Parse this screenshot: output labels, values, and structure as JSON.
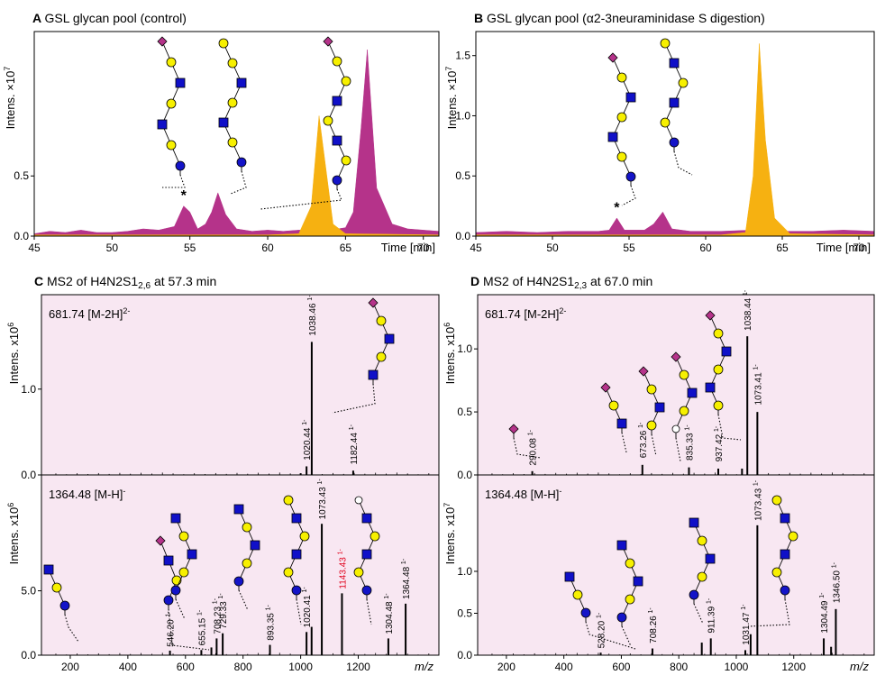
{
  "colors": {
    "sialylated": "#b5338a",
    "digested": "#f6b111",
    "msBackground": "#f8e7f2",
    "hexnac": "#1010c8",
    "galactose": "#f7f000",
    "glucose": "#1414c8",
    "sialic": "#b5338a"
  },
  "chart_data": [
    {
      "id": "A",
      "type": "area",
      "letter": "A",
      "title": "GSL glycan pool (control)",
      "xlabel": "Time [min]",
      "ylabel": "Intens. ×10",
      "ylabel_exp": "7",
      "xlim": [
        45,
        71
      ],
      "ylim": [
        0,
        1.7
      ],
      "xticks": [
        "45",
        "50",
        "55",
        "60",
        "65",
        "70"
      ],
      "yticks": [
        "0.0",
        "0.5"
      ],
      "series": [
        {
          "color": "#b5338a",
          "x": [
            45,
            46,
            47,
            48,
            49,
            50,
            51,
            52,
            53,
            54,
            54.6,
            55,
            55.5,
            56,
            56.4,
            56.8,
            57.3,
            58,
            59,
            60,
            61,
            62,
            63,
            63.5,
            64,
            65,
            65.5,
            66,
            66.4,
            67,
            68,
            69,
            70,
            71
          ],
          "y": [
            0.02,
            0.04,
            0.03,
            0.05,
            0.03,
            0.03,
            0.04,
            0.06,
            0.05,
            0.08,
            0.25,
            0.2,
            0.06,
            0.1,
            0.2,
            0.36,
            0.18,
            0.06,
            0.04,
            0.05,
            0.04,
            0.05,
            0.04,
            0.03,
            0.05,
            0.07,
            0.2,
            0.9,
            1.55,
            0.4,
            0.1,
            0.06,
            0.05,
            0.04
          ]
        },
        {
          "color": "#f6b111",
          "x": [
            45,
            60,
            62,
            62.8,
            63.3,
            63.7,
            64.2,
            65,
            71
          ],
          "y": [
            0.01,
            0.01,
            0.02,
            0.25,
            1.0,
            0.6,
            0.1,
            0.02,
            0.01
          ]
        }
      ],
      "annotations": [
        {
          "text": "*",
          "x": 54.6,
          "y": 0.3
        }
      ]
    },
    {
      "id": "B",
      "type": "area",
      "letter": "B",
      "title": "GSL glycan pool (α2-3neuraminidase S digestion)",
      "xlabel": "Time [min]",
      "ylabel": "Intens. ×10",
      "ylabel_exp": "7",
      "xlim": [
        45,
        71
      ],
      "ylim": [
        0,
        1.7
      ],
      "xticks": [
        "45",
        "50",
        "55",
        "60",
        "65",
        "70"
      ],
      "yticks": [
        "0.0",
        "0.5",
        "1.0",
        "1.5"
      ],
      "series": [
        {
          "color": "#b5338a",
          "x": [
            45,
            47,
            49,
            51,
            53,
            53.7,
            54.2,
            54.7,
            56,
            56.6,
            57.2,
            57.8,
            59,
            61,
            63,
            65,
            67,
            69,
            71
          ],
          "y": [
            0.03,
            0.04,
            0.03,
            0.04,
            0.04,
            0.05,
            0.15,
            0.05,
            0.05,
            0.1,
            0.2,
            0.06,
            0.04,
            0.04,
            0.05,
            0.04,
            0.04,
            0.05,
            0.04
          ]
        },
        {
          "color": "#f6b111",
          "x": [
            45,
            61,
            62.6,
            63.1,
            63.5,
            63.9,
            64.5,
            65.5,
            71
          ],
          "y": [
            0.01,
            0.01,
            0.03,
            0.5,
            1.6,
            0.8,
            0.15,
            0.02,
            0.01
          ]
        }
      ],
      "annotations": [
        {
          "text": "*",
          "x": 54.2,
          "y": 0.2
        }
      ]
    },
    {
      "id": "C",
      "type": "bar",
      "letter": "C",
      "title": "MS2 of H4N2S1",
      "title_sub": "2,6",
      "title_tail": " at 57.3 min",
      "xlabel": "m/z",
      "xlim": [
        100,
        1480
      ],
      "xticks": [
        "200",
        "400",
        "600",
        "800",
        "1000",
        "1200"
      ],
      "panels": [
        {
          "precursor": "681.74 [M-2H]",
          "precursor_sup": "2-",
          "ylabel": "Intens. x10",
          "ylabel_exp": "6",
          "ylim": [
            0,
            2.1
          ],
          "yticks": [
            "0.0",
            "1.0"
          ],
          "peaks": [
            {
              "mz": 1020.44,
              "h": 0.1
            },
            {
              "mz": 1038.46,
              "h": 1.55
            },
            {
              "mz": 1182.44,
              "h": 0.05
            },
            {
              "mz": 1000,
              "h": 0.02
            }
          ],
          "labels": [
            {
              "mz": 1020.44,
              "text": "1020.44",
              "charge": "1-",
              "y": 0.15
            },
            {
              "mz": 1038.46,
              "text": "1038.46",
              "charge": "1-",
              "y": 1.6
            },
            {
              "mz": 1182.44,
              "text": "1182.44",
              "charge": "1-",
              "y": 0.1
            }
          ]
        },
        {
          "precursor": "1364.48 [M-H]",
          "precursor_sup": "-",
          "ylabel": "Intens. x10",
          "ylabel_exp": "6",
          "ylim": [
            0,
            14
          ],
          "yticks": [
            "0.0",
            "5.0"
          ],
          "peaks": [
            {
              "mz": 546.2,
              "h": 0.35
            },
            {
              "mz": 655.15,
              "h": 0.4
            },
            {
              "mz": 690,
              "h": 0.6
            },
            {
              "mz": 708.23,
              "h": 1.3
            },
            {
              "mz": 729.33,
              "h": 1.7
            },
            {
              "mz": 893.35,
              "h": 0.8
            },
            {
              "mz": 1020.41,
              "h": 1.8
            },
            {
              "mz": 1038,
              "h": 2.2
            },
            {
              "mz": 1073.43,
              "h": 10.2
            },
            {
              "mz": 1143.43,
              "h": 4.8
            },
            {
              "mz": 1304.48,
              "h": 1.3
            },
            {
              "mz": 1364.48,
              "h": 4.0
            }
          ],
          "labels": [
            {
              "mz": 546.2,
              "text": "546.20",
              "charge": "1-",
              "y": 0.5
            },
            {
              "mz": 655.15,
              "text": "655.15",
              "charge": "1-",
              "y": 0.6
            },
            {
              "mz": 708.23,
              "text": "708.23",
              "charge": "1-",
              "y": 1.5
            },
            {
              "mz": 729.33,
              "text": "729.33",
              "charge": "1-",
              "y": 1.9
            },
            {
              "mz": 893.35,
              "text": "893.35",
              "charge": "1-",
              "y": 1.0
            },
            {
              "mz": 1020.41,
              "text": "1020.41",
              "charge": "1-",
              "y": 2.0
            },
            {
              "mz": 1073.43,
              "text": "1073.43",
              "charge": "1-",
              "y": 10.4
            },
            {
              "mz": 1143.43,
              "text": "1143.43",
              "charge": "1-",
              "y": 5.0,
              "red": true
            },
            {
              "mz": 1304.48,
              "text": "1304.48",
              "charge": "1-",
              "y": 1.5
            },
            {
              "mz": 1364.48,
              "text": "1364.48",
              "charge": "1-",
              "y": 4.2
            }
          ]
        }
      ]
    },
    {
      "id": "D",
      "type": "bar",
      "letter": "D",
      "title": "MS2 of H4N2S1",
      "title_sub": "2,3",
      "title_tail": " at 67.0 min",
      "xlabel": "m/z",
      "xlim": [
        100,
        1480
      ],
      "xticks": [
        "200",
        "400",
        "600",
        "800",
        "1000",
        "1200"
      ],
      "panels": [
        {
          "precursor": "681.74 [M-2H]",
          "precursor_sup": "2-",
          "ylabel": "Intens. x10",
          "ylabel_exp": "6",
          "ylim": [
            0,
            1.43
          ],
          "yticks": [
            "0.0",
            "0.5",
            "1.0"
          ],
          "peaks": [
            {
              "mz": 290.08,
              "h": 0.03
            },
            {
              "mz": 673.26,
              "h": 0.08
            },
            {
              "mz": 835.33,
              "h": 0.06
            },
            {
              "mz": 937.42,
              "h": 0.05
            },
            {
              "mz": 1038.44,
              "h": 1.1
            },
            {
              "mz": 1073.41,
              "h": 0.5
            },
            {
              "mz": 1020,
              "h": 0.05
            }
          ],
          "labels": [
            {
              "mz": 290.08,
              "text": "290.08",
              "charge": "1-",
              "y": 0.06
            },
            {
              "mz": 673.26,
              "text": "673.26",
              "charge": "1-",
              "y": 0.12
            },
            {
              "mz": 835.33,
              "text": "835.33",
              "charge": "1-",
              "y": 0.1
            },
            {
              "mz": 937.42,
              "text": "937.42",
              "charge": "1-",
              "y": 0.09
            },
            {
              "mz": 1038.44,
              "text": "1038.44",
              "charge": "1-",
              "y": 1.13
            },
            {
              "mz": 1073.41,
              "text": "1073.41",
              "charge": "1-",
              "y": 0.54
            }
          ]
        },
        {
          "precursor": "1364.48 [M-H]",
          "precursor_sup": "-",
          "ylabel": "Intens. x10",
          "ylabel_exp": "7",
          "ylim": [
            0,
            2.15
          ],
          "yticks": [
            "0.0",
            "0.5",
            "1.0"
          ],
          "peaks": [
            {
              "mz": 528.2,
              "h": 0.03
            },
            {
              "mz": 708.26,
              "h": 0.08
            },
            {
              "mz": 880,
              "h": 0.15
            },
            {
              "mz": 911.39,
              "h": 0.2
            },
            {
              "mz": 1031.47,
              "h": 0.06
            },
            {
              "mz": 1050,
              "h": 0.25
            },
            {
              "mz": 1073.43,
              "h": 1.55
            },
            {
              "mz": 1304.49,
              "h": 0.2
            },
            {
              "mz": 1346.5,
              "h": 0.55
            },
            {
              "mz": 1330,
              "h": 0.1
            }
          ],
          "labels": [
            {
              "mz": 528.2,
              "text": "528.20",
              "charge": "1-",
              "y": 0.06
            },
            {
              "mz": 708.26,
              "text": "708.26",
              "charge": "1-",
              "y": 0.12
            },
            {
              "mz": 911.39,
              "text": "911.39",
              "charge": "1-",
              "y": 0.24
            },
            {
              "mz": 1031.47,
              "text": "1031.47",
              "charge": "1-",
              "y": 0.1
            },
            {
              "mz": 1073.43,
              "text": "1073.43",
              "charge": "1-",
              "y": 1.58
            },
            {
              "mz": 1304.49,
              "text": "1304.49",
              "charge": "1-",
              "y": 0.24
            },
            {
              "mz": 1346.5,
              "text": "1346.50",
              "charge": "1-",
              "y": 0.6
            }
          ]
        }
      ]
    }
  ]
}
